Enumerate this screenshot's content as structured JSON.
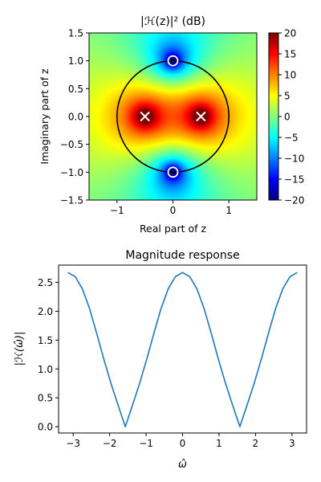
{
  "chart_data": [
    {
      "type": "heatmap",
      "title": "|ℋ(z)|² (dB)",
      "xlabel": "Real part of z",
      "ylabel": "Imaginary part of z",
      "xlim": [
        -1.5,
        1.5
      ],
      "ylim": [
        -1.5,
        1.5
      ],
      "xticks": [
        -1,
        0,
        1
      ],
      "xtick_labels": [
        "−1",
        "0",
        "1"
      ],
      "yticks": [
        1.5,
        1.0,
        0.5,
        0.0,
        -0.5,
        -1.0,
        -1.5
      ],
      "ytick_labels": [
        "1.5",
        "1.0",
        "0.5",
        "0.0",
        "−0.5",
        "−1.0",
        "−1.5"
      ],
      "colormap": "jet",
      "clim": [
        -20,
        20
      ],
      "colorbar_ticks": [
        20,
        15,
        10,
        5,
        0,
        -5,
        -10,
        -15,
        -20
      ],
      "colorbar_tick_labels": [
        "20",
        "15",
        "10",
        "5",
        "0",
        "−5",
        "−10",
        "−15",
        "−20"
      ],
      "unit_circle": {
        "radius": 1
      },
      "zeros": [
        [
          0,
          1
        ],
        [
          0,
          -1
        ]
      ],
      "poles": [
        [
          -0.5,
          0
        ],
        [
          0.5,
          0
        ]
      ],
      "zero_marker": "circle",
      "pole_marker": "x",
      "grid": false
    },
    {
      "type": "line",
      "title": "Magnitude response",
      "xlabel": "ω̂",
      "ylabel": "|ℋ(ω̂)|",
      "xlim": [
        -3.4,
        3.4
      ],
      "ylim": [
        -0.11,
        2.8
      ],
      "xticks": [
        -3,
        -2,
        -1,
        0,
        1,
        2,
        3
      ],
      "xtick_labels": [
        "−3",
        "−2",
        "−1",
        "0",
        "1",
        "2",
        "3"
      ],
      "yticks": [
        0.0,
        0.5,
        1.0,
        1.5,
        2.0,
        2.5
      ],
      "ytick_labels": [
        "0.0",
        "0.5",
        "1.0",
        "1.5",
        "2.0",
        "2.5"
      ],
      "line_color": "#1f77b4",
      "grid": false,
      "series": [
        {
          "x": [
            -3.1416,
            -2.9452,
            -2.7489,
            -2.5525,
            -2.3562,
            -2.1598,
            -1.9635,
            -1.7671,
            -1.5708,
            -1.3744,
            -1.1781,
            -0.9817,
            -0.7854,
            -0.589,
            -0.3927,
            -0.1963,
            0.0,
            0.1963,
            0.3927,
            0.589,
            0.7854,
            0.9817,
            1.1781,
            1.3744,
            1.5708,
            1.7671,
            1.9635,
            2.1598,
            2.3562,
            2.5525,
            2.7489,
            2.9452,
            3.1416
          ],
          "y": [
            2.67,
            2.6,
            2.39,
            2.05,
            1.62,
            1.17,
            0.75,
            0.37,
            0.0,
            0.37,
            0.75,
            1.17,
            1.62,
            2.05,
            2.39,
            2.6,
            2.67,
            2.6,
            2.39,
            2.05,
            1.62,
            1.17,
            0.75,
            0.37,
            0.0,
            0.37,
            0.75,
            1.17,
            1.62,
            2.05,
            2.39,
            2.6,
            2.67
          ]
        }
      ]
    }
  ]
}
